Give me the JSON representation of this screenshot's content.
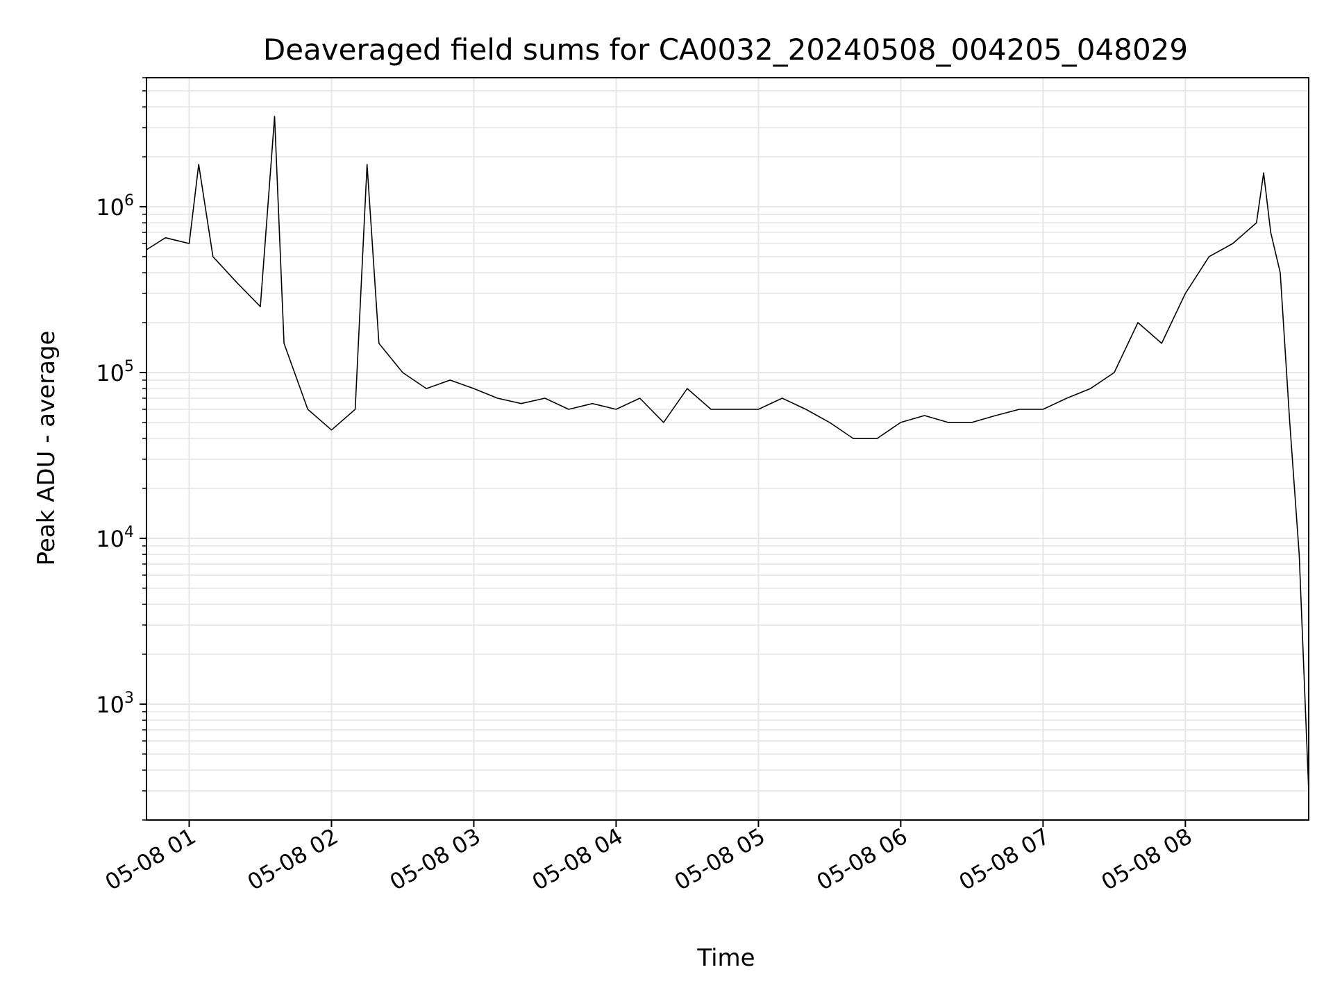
{
  "chart_data": {
    "type": "line",
    "title": "Deaveraged field sums for CA0032_20240508_004205_048029",
    "xlabel": "Time",
    "ylabel": "Peak ADU - average",
    "yscale": "log",
    "ylim": [
      200,
      6000000
    ],
    "xlim": [
      "2024-05-08 00:42",
      "2024-05-08 08:52"
    ],
    "x_tick_labels": [
      "05-08 01",
      "05-08 02",
      "05-08 03",
      "05-08 04",
      "05-08 05",
      "05-08 06",
      "05-08 07",
      "05-08 08"
    ],
    "x_ticks": [
      "2024-05-08 01:00",
      "2024-05-08 02:00",
      "2024-05-08 03:00",
      "2024-05-08 04:00",
      "2024-05-08 05:00",
      "2024-05-08 06:00",
      "2024-05-08 07:00",
      "2024-05-08 08:00"
    ],
    "y_ticks": [
      1000,
      10000,
      100000,
      1000000
    ],
    "y_tick_labels": [
      {
        "base": "10",
        "exp": "3"
      },
      {
        "base": "10",
        "exp": "4"
      },
      {
        "base": "10",
        "exp": "5"
      },
      {
        "base": "10",
        "exp": "6"
      }
    ],
    "grid": true,
    "line_color": "#000000",
    "grid_color": "#e6e6e6",
    "series": [
      {
        "x": [
          "2024-05-08 00:42",
          "2024-05-08 00:50",
          "2024-05-08 01:00",
          "2024-05-08 01:04",
          "2024-05-08 01:10",
          "2024-05-08 01:20",
          "2024-05-08 01:30",
          "2024-05-08 01:36",
          "2024-05-08 01:40",
          "2024-05-08 01:50",
          "2024-05-08 02:00",
          "2024-05-08 02:10",
          "2024-05-08 02:15",
          "2024-05-08 02:20",
          "2024-05-08 02:30",
          "2024-05-08 02:40",
          "2024-05-08 02:50",
          "2024-05-08 03:00",
          "2024-05-08 03:10",
          "2024-05-08 03:20",
          "2024-05-08 03:30",
          "2024-05-08 03:40",
          "2024-05-08 03:50",
          "2024-05-08 04:00",
          "2024-05-08 04:10",
          "2024-05-08 04:20",
          "2024-05-08 04:30",
          "2024-05-08 04:40",
          "2024-05-08 04:50",
          "2024-05-08 05:00",
          "2024-05-08 05:10",
          "2024-05-08 05:20",
          "2024-05-08 05:30",
          "2024-05-08 05:40",
          "2024-05-08 05:50",
          "2024-05-08 06:00",
          "2024-05-08 06:10",
          "2024-05-08 06:20",
          "2024-05-08 06:30",
          "2024-05-08 06:40",
          "2024-05-08 06:50",
          "2024-05-08 07:00",
          "2024-05-08 07:10",
          "2024-05-08 07:20",
          "2024-05-08 07:30",
          "2024-05-08 07:40",
          "2024-05-08 07:50",
          "2024-05-08 08:00",
          "2024-05-08 08:10",
          "2024-05-08 08:20",
          "2024-05-08 08:30",
          "2024-05-08 08:33",
          "2024-05-08 08:36",
          "2024-05-08 08:40",
          "2024-05-08 08:44",
          "2024-05-08 08:48",
          "2024-05-08 08:52"
        ],
        "y": [
          550000,
          650000,
          600000,
          1800000,
          500000,
          350000,
          250000,
          3500000,
          150000,
          60000,
          45000,
          60000,
          1800000,
          150000,
          100000,
          80000,
          90000,
          80000,
          70000,
          65000,
          70000,
          60000,
          65000,
          60000,
          70000,
          50000,
          80000,
          60000,
          60000,
          60000,
          70000,
          60000,
          50000,
          40000,
          40000,
          50000,
          55000,
          50000,
          50000,
          55000,
          60000,
          60000,
          70000,
          80000,
          100000,
          200000,
          150000,
          300000,
          500000,
          600000,
          800000,
          1600000,
          700000,
          400000,
          50000,
          8000,
          300
        ]
      }
    ]
  }
}
